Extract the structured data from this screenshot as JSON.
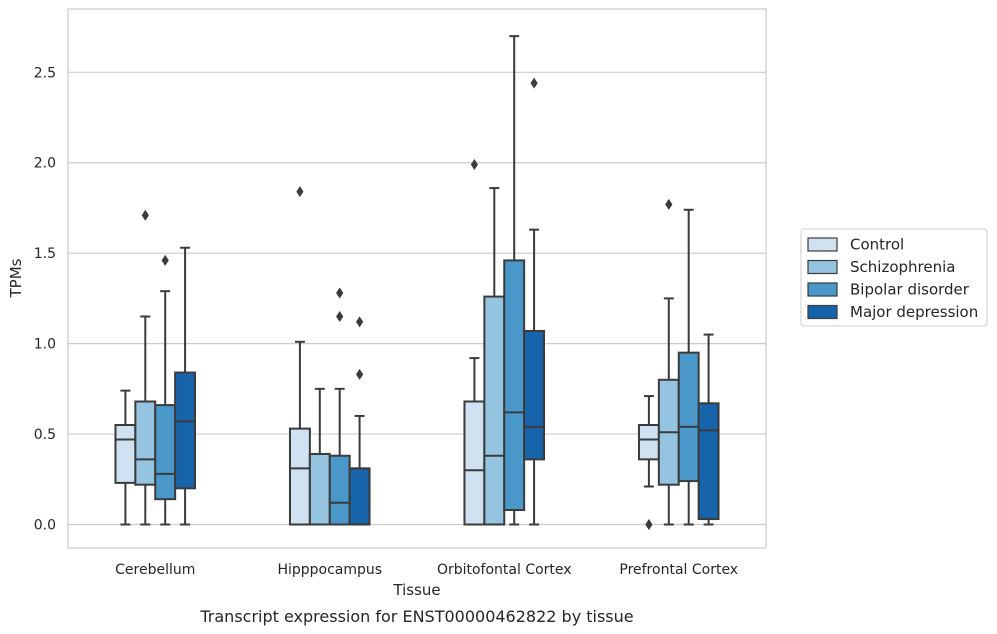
{
  "chart_data": {
    "type": "box",
    "title": "",
    "caption": "Transcript expression for ENST00000462822 by tissue",
    "xlabel": "Tissue",
    "ylabel": "TPMs",
    "ylim": [
      -0.13,
      2.85
    ],
    "yticks": [
      "0.0",
      "0.5",
      "1.0",
      "1.5",
      "2.0",
      "2.5"
    ],
    "grid": "horizontal",
    "legend_position": "right",
    "categories": [
      "Cerebellum",
      "Hipppocampus",
      "Orbitofontal Cortex",
      "Prefrontal Cortex"
    ],
    "series": [
      {
        "name": "Control",
        "color": "#d0e1f2",
        "boxes": [
          {
            "whislo": 0.0,
            "q1": 0.23,
            "med": 0.47,
            "q3": 0.55,
            "whishi": 0.74,
            "fliers": []
          },
          {
            "whislo": 0.0,
            "q1": 0.0,
            "med": 0.31,
            "q3": 0.53,
            "whishi": 1.01,
            "fliers": [
              1.84
            ]
          },
          {
            "whislo": 0.0,
            "q1": 0.0,
            "med": 0.3,
            "q3": 0.68,
            "whishi": 0.92,
            "fliers": [
              1.99
            ]
          },
          {
            "whislo": 0.21,
            "q1": 0.36,
            "med": 0.47,
            "q3": 0.55,
            "whishi": 0.71,
            "fliers": [
              0.0
            ]
          }
        ]
      },
      {
        "name": "Schizophrenia",
        "color": "#94c4df",
        "boxes": [
          {
            "whislo": 0.0,
            "q1": 0.22,
            "med": 0.36,
            "q3": 0.68,
            "whishi": 1.15,
            "fliers": [
              1.71
            ]
          },
          {
            "whislo": 0.0,
            "q1": 0.0,
            "med": 0.39,
            "q3": 0.39,
            "whishi": 0.75,
            "fliers": []
          },
          {
            "whislo": 0.0,
            "q1": 0.0,
            "med": 0.38,
            "q3": 1.26,
            "whishi": 1.86,
            "fliers": []
          },
          {
            "whislo": 0.0,
            "q1": 0.22,
            "med": 0.51,
            "q3": 0.8,
            "whishi": 1.25,
            "fliers": [
              1.77
            ]
          }
        ]
      },
      {
        "name": "Bipolar disorder",
        "color": "#4a98c9",
        "boxes": [
          {
            "whislo": 0.0,
            "q1": 0.14,
            "med": 0.28,
            "q3": 0.66,
            "whishi": 1.29,
            "fliers": [
              1.46
            ]
          },
          {
            "whislo": 0.0,
            "q1": 0.0,
            "med": 0.12,
            "q3": 0.38,
            "whishi": 0.75,
            "fliers": [
              1.15,
              1.28
            ]
          },
          {
            "whislo": 0.0,
            "q1": 0.08,
            "med": 0.62,
            "q3": 1.46,
            "whishi": 2.7,
            "fliers": []
          },
          {
            "whislo": 0.0,
            "q1": 0.24,
            "med": 0.54,
            "q3": 0.95,
            "whishi": 1.74,
            "fliers": []
          }
        ]
      },
      {
        "name": "Major depression",
        "color": "#1764ab",
        "boxes": [
          {
            "whislo": 0.0,
            "q1": 0.2,
            "med": 0.57,
            "q3": 0.84,
            "whishi": 1.53,
            "fliers": []
          },
          {
            "whislo": 0.0,
            "q1": 0.0,
            "med": 0.31,
            "q3": 0.31,
            "whishi": 0.6,
            "fliers": [
              0.83,
              1.12
            ]
          },
          {
            "whislo": 0.0,
            "q1": 0.36,
            "med": 0.54,
            "q3": 1.07,
            "whishi": 1.63,
            "fliers": [
              2.44
            ]
          },
          {
            "whislo": 0.0,
            "q1": 0.03,
            "med": 0.52,
            "q3": 0.67,
            "whishi": 1.05,
            "fliers": []
          }
        ]
      }
    ]
  }
}
